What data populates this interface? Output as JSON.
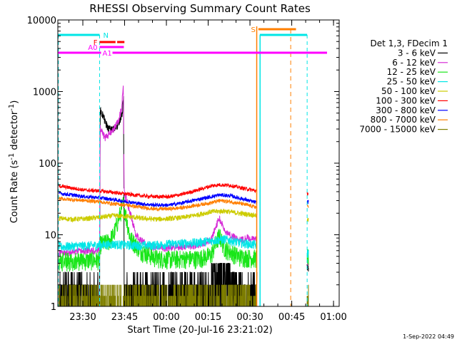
{
  "chart_data": {
    "type": "line",
    "title": "RHESSI Observing Summary Count Rates",
    "xlabel": "Start Time (20-Jul-16 23:21:02)",
    "ylabel_main": "Count Rate (s",
    "ylabel_sup1": "-1",
    "ylabel_mid": " detector",
    "ylabel_sup2": "-1",
    "ylabel_end": ")",
    "yscale": "log",
    "ylim": [
      1,
      10000
    ],
    "x_unit": "minutes after 23:21:02",
    "xlim": [
      0,
      101
    ],
    "xticks": [
      {
        "t": 8.97,
        "label": "23:30"
      },
      {
        "t": 23.97,
        "label": "23:45"
      },
      {
        "t": 38.97,
        "label": "00:00"
      },
      {
        "t": 53.97,
        "label": "00:15"
      },
      {
        "t": 68.97,
        "label": "00:30"
      },
      {
        "t": 83.97,
        "label": "00:45"
      },
      {
        "t": 98.97,
        "label": "01:00"
      }
    ],
    "yticks": [
      {
        "v": 1,
        "label": "1"
      },
      {
        "v": 10,
        "label": "10"
      },
      {
        "v": 100,
        "label": "100"
      },
      {
        "v": 1000,
        "label": "1000"
      },
      {
        "v": 10000,
        "label": "10000"
      }
    ],
    "data_gaps": [
      [
        0,
        0.4
      ],
      [
        71.5,
        89.5
      ],
      [
        90,
        101
      ]
    ],
    "segments": [
      [
        0.4,
        15
      ],
      [
        15,
        23.7
      ],
      [
        23.7,
        71.5
      ],
      [
        89.5,
        90
      ]
    ],
    "legend_title": "Det 1,3, FDecim 1",
    "series": [
      {
        "name": "3 - 6 keV",
        "color": "#000000",
        "points": [
          [
            0.4,
            1.9
          ],
          [
            15,
            1.9
          ],
          [
            15.2,
            550
          ],
          [
            16,
            480
          ],
          [
            17,
            380
          ],
          [
            18,
            310
          ],
          [
            19,
            290
          ],
          [
            20,
            300
          ],
          [
            21,
            320
          ],
          [
            22,
            380
          ],
          [
            23,
            480
          ],
          [
            23.6,
            780
          ],
          [
            23.8,
            2.5
          ],
          [
            71.5,
            2.5
          ],
          [
            89.5,
            3.5
          ],
          [
            90,
            3.5
          ]
        ]
      },
      {
        "name": "6 - 12 keV",
        "color": "#d62cd6",
        "points": [
          [
            0.4,
            5.5
          ],
          [
            15,
            6.2
          ],
          [
            15.2,
            330
          ],
          [
            16,
            260
          ],
          [
            17,
            230
          ],
          [
            18,
            245
          ],
          [
            19,
            270
          ],
          [
            20,
            300
          ],
          [
            21,
            340
          ],
          [
            22,
            420
          ],
          [
            23,
            620
          ],
          [
            23.5,
            1400
          ],
          [
            23.8,
            40
          ],
          [
            26,
            20
          ],
          [
            28,
            10
          ],
          [
            32,
            7
          ],
          [
            38,
            6.5
          ],
          [
            45,
            6.8
          ],
          [
            50,
            7.2
          ],
          [
            55,
            8.5
          ],
          [
            57,
            14
          ],
          [
            58,
            17
          ],
          [
            59,
            14
          ],
          [
            60,
            11
          ],
          [
            62,
            10
          ],
          [
            64,
            9
          ],
          [
            66,
            8.5
          ],
          [
            68,
            9
          ],
          [
            70,
            8.7
          ],
          [
            71.5,
            8.5
          ],
          [
            89.5,
            4
          ],
          [
            90,
            4
          ]
        ]
      },
      {
        "name": "12 - 25 keV",
        "color": "#19e619",
        "points": [
          [
            0.4,
            4.3
          ],
          [
            15,
            4.5
          ],
          [
            15.2,
            7.5
          ],
          [
            18,
            8
          ],
          [
            20,
            10
          ],
          [
            22,
            18
          ],
          [
            23.5,
            28
          ],
          [
            24.5,
            18
          ],
          [
            26,
            9
          ],
          [
            30,
            6
          ],
          [
            35,
            4.8
          ],
          [
            40,
            4.6
          ],
          [
            45,
            4.7
          ],
          [
            50,
            4.7
          ],
          [
            55,
            5.2
          ],
          [
            57,
            8
          ],
          [
            58,
            10
          ],
          [
            59,
            8
          ],
          [
            60,
            6.5
          ],
          [
            65,
            5
          ],
          [
            70,
            4.8
          ],
          [
            71.5,
            4.8
          ],
          [
            89.5,
            5
          ],
          [
            90,
            5
          ]
        ]
      },
      {
        "name": "25 - 50 keV",
        "color": "#00e6e6",
        "points": [
          [
            0.4,
            6.8
          ],
          [
            15,
            7.2
          ],
          [
            20,
            7.4
          ],
          [
            25,
            7.2
          ],
          [
            30,
            7.1
          ],
          [
            35,
            7.2
          ],
          [
            40,
            7.4
          ],
          [
            45,
            7.6
          ],
          [
            50,
            7.8
          ],
          [
            55,
            8.3
          ],
          [
            60,
            8.7
          ],
          [
            65,
            7.8
          ],
          [
            70,
            7.3
          ],
          [
            71.5,
            7.2
          ],
          [
            89.5,
            5.5
          ],
          [
            90,
            5.5
          ]
        ]
      },
      {
        "name": "50 - 100 keV",
        "color": "#cccc00",
        "points": [
          [
            0.4,
            17
          ],
          [
            5,
            16.5
          ],
          [
            10,
            16.8
          ],
          [
            15,
            17.5
          ],
          [
            20,
            18.5
          ],
          [
            25,
            18
          ],
          [
            30,
            17
          ],
          [
            35,
            16.5
          ],
          [
            40,
            16.8
          ],
          [
            45,
            17.5
          ],
          [
            50,
            19
          ],
          [
            55,
            21
          ],
          [
            60,
            21.5
          ],
          [
            65,
            20
          ],
          [
            70,
            19
          ],
          [
            71.5,
            18.5
          ],
          [
            89.5,
            16
          ],
          [
            90,
            16
          ]
        ]
      },
      {
        "name": "100 - 300 keV",
        "color": "#ff0000",
        "points": [
          [
            0.4,
            48
          ],
          [
            5,
            45
          ],
          [
            10,
            42
          ],
          [
            15,
            41
          ],
          [
            20,
            39
          ],
          [
            25,
            37
          ],
          [
            30,
            35
          ],
          [
            35,
            34
          ],
          [
            40,
            34
          ],
          [
            45,
            37
          ],
          [
            50,
            42
          ],
          [
            55,
            48
          ],
          [
            58,
            50
          ],
          [
            62,
            49
          ],
          [
            66,
            45
          ],
          [
            70,
            42
          ],
          [
            71.5,
            41
          ],
          [
            89.5,
            38
          ],
          [
            90,
            38
          ]
        ]
      },
      {
        "name": "300 - 800 keV",
        "color": "#0000ff",
        "points": [
          [
            0.4,
            38
          ],
          [
            5,
            36
          ],
          [
            10,
            34
          ],
          [
            15,
            33
          ],
          [
            20,
            31
          ],
          [
            25,
            29
          ],
          [
            30,
            27
          ],
          [
            35,
            26
          ],
          [
            40,
            26
          ],
          [
            45,
            28
          ],
          [
            50,
            31
          ],
          [
            55,
            34
          ],
          [
            58,
            36
          ],
          [
            62,
            35
          ],
          [
            66,
            32
          ],
          [
            70,
            29
          ],
          [
            71.5,
            28
          ],
          [
            89.5,
            29
          ],
          [
            90,
            29
          ]
        ]
      },
      {
        "name": "800 - 7000 keV",
        "color": "#ff7f00",
        "points": [
          [
            0.4,
            32
          ],
          [
            5,
            31
          ],
          [
            10,
            30
          ],
          [
            15,
            29
          ],
          [
            20,
            27
          ],
          [
            25,
            26
          ],
          [
            30,
            24
          ],
          [
            35,
            23
          ],
          [
            40,
            23
          ],
          [
            45,
            24
          ],
          [
            50,
            26
          ],
          [
            55,
            28
          ],
          [
            58,
            30
          ],
          [
            62,
            29
          ],
          [
            66,
            27
          ],
          [
            70,
            25
          ],
          [
            71.5,
            24
          ],
          [
            89.5,
            25
          ],
          [
            90,
            25
          ]
        ]
      },
      {
        "name": "7000 - 15000 keV",
        "color": "#808000",
        "points": [
          [
            0.4,
            1.4
          ],
          [
            15,
            1.4
          ],
          [
            23.7,
            1.4
          ],
          [
            71.5,
            1.4
          ],
          [
            89.5,
            1.4
          ],
          [
            90,
            1.4
          ]
        ]
      }
    ],
    "annotations": {
      "S_label": "S",
      "N_label": "N",
      "F_label": "F",
      "A0_label": "A0",
      "A1_label": "A1",
      "S_color": "#ff7f00",
      "N_color": "#00e6e6",
      "F_color": "#ff0000",
      "A_color": "#ff00ff",
      "S_bar": [
        72,
        85.5
      ],
      "N_bars": [
        [
          0,
          15
        ],
        [
          72.5,
          89.5
        ]
      ],
      "F_bars": [
        [
          15,
          20.7
        ],
        [
          21.3,
          23.9
        ]
      ],
      "A0_bar": [
        15,
        23.7
      ],
      "A1_bar": [
        0,
        101
      ],
      "N_edges": [
        0.2,
        15,
        72.6,
        89.5
      ],
      "S_edges_solid": [
        71.4
      ],
      "S_edges_dashed": [
        83.6
      ]
    },
    "date_stamp": "1-Sep-2022 04:49"
  }
}
